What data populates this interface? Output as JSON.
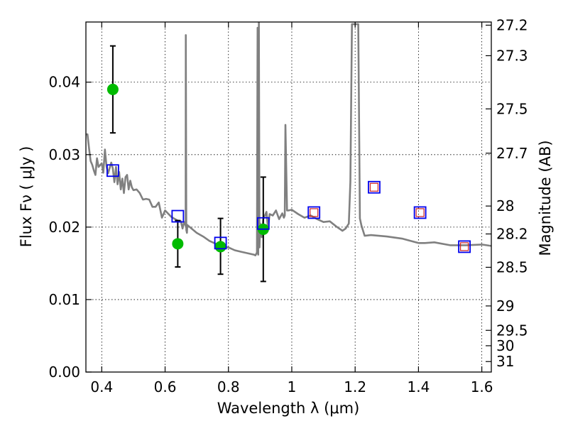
{
  "chart_data": {
    "type": "scatter",
    "xlabel": "Wavelength  λ (μm)",
    "ylabel": "Flux  Fν  ( μJy )",
    "y2label": "Magnitude (AB)",
    "xlim": [
      0.35,
      1.63
    ],
    "ylim": [
      0.0,
      0.0483
    ],
    "xticks": [
      0.4,
      0.6,
      0.8,
      1.0,
      1.2,
      1.4,
      1.6
    ],
    "xtick_labels": [
      "0.4",
      "0.6",
      "0.8",
      "1",
      "1.2",
      "1.4",
      "1.6"
    ],
    "yticks": [
      0.0,
      0.01,
      0.02,
      0.03,
      0.04
    ],
    "ytick_labels": [
      "0.00",
      "0.01",
      "0.02",
      "0.03",
      "0.04"
    ],
    "mag_ticks": [
      27.2,
      27.3,
      27.5,
      27.7,
      28.0,
      28.2,
      28.5,
      29.0,
      29.5,
      30.0,
      31.0
    ],
    "mag_tick_labels": [
      "27.2",
      "27.3",
      "27.5",
      "27.7",
      "28",
      "28.2",
      "28.5",
      "29",
      "29.5",
      "30",
      "31"
    ],
    "grid": true,
    "colors": {
      "model": "#808080",
      "observed": "#00bb00",
      "synthetic": "#0000ee",
      "inner_marker": "#cc2222",
      "errorbar": "#000000"
    },
    "model_sed": {
      "x": [
        0.35,
        0.355,
        0.36,
        0.365,
        0.37,
        0.375,
        0.38,
        0.385,
        0.39,
        0.4,
        0.405,
        0.41,
        0.415,
        0.42,
        0.43,
        0.435,
        0.44,
        0.445,
        0.45,
        0.455,
        0.46,
        0.465,
        0.47,
        0.475,
        0.48,
        0.485,
        0.49,
        0.495,
        0.5,
        0.51,
        0.52,
        0.53,
        0.54,
        0.55,
        0.56,
        0.57,
        0.58,
        0.59,
        0.6,
        0.62,
        0.64,
        0.65,
        0.655,
        0.66,
        0.665,
        0.6655,
        0.667,
        0.669,
        0.67,
        0.675,
        0.7,
        0.72,
        0.74,
        0.76,
        0.78,
        0.8,
        0.82,
        0.84,
        0.86,
        0.88,
        0.885,
        0.89,
        0.892,
        0.894,
        0.896,
        0.898,
        0.9,
        0.905,
        0.91,
        0.92,
        0.925,
        0.93,
        0.94,
        0.95,
        0.96,
        0.97,
        0.975,
        0.978,
        0.98,
        0.985,
        0.99,
        1.0,
        1.02,
        1.04,
        1.06,
        1.08,
        1.1,
        1.12,
        1.14,
        1.16,
        1.17,
        1.18,
        1.185,
        1.19,
        1.2,
        1.21,
        1.215,
        1.22,
        1.23,
        1.25,
        1.3,
        1.35,
        1.4,
        1.42,
        1.45,
        1.5,
        1.55,
        1.6,
        1.63
      ],
      "y": [
        0.0328,
        0.0328,
        0.0308,
        0.0291,
        0.0286,
        0.0278,
        0.0272,
        0.0295,
        0.0283,
        0.0288,
        0.0275,
        0.0307,
        0.0284,
        0.0274,
        0.0289,
        0.0281,
        0.0262,
        0.0283,
        0.0259,
        0.0276,
        0.0252,
        0.0267,
        0.0247,
        0.0269,
        0.0272,
        0.0252,
        0.0264,
        0.0255,
        0.0251,
        0.0252,
        0.0247,
        0.0238,
        0.0239,
        0.0238,
        0.0228,
        0.0228,
        0.0234,
        0.0213,
        0.0223,
        0.0214,
        0.0209,
        0.0208,
        0.0198,
        0.0207,
        0.0202,
        0.0465,
        0.0196,
        0.0192,
        0.0203,
        0.0201,
        0.0192,
        0.0187,
        0.0181,
        0.0177,
        0.0173,
        0.0172,
        0.0168,
        0.0166,
        0.0164,
        0.0162,
        0.0161,
        0.0165,
        0.0475,
        0.0162,
        0.0487,
        0.0172,
        0.0205,
        0.0186,
        0.0211,
        0.0221,
        0.0197,
        0.0218,
        0.0216,
        0.0223,
        0.0211,
        0.0219,
        0.0213,
        0.0216,
        0.0341,
        0.0223,
        0.0223,
        0.0224,
        0.0218,
        0.0213,
        0.0216,
        0.0211,
        0.0207,
        0.0208,
        0.0201,
        0.0195,
        0.0198,
        0.0205,
        0.0263,
        0.048,
        0.048,
        0.048,
        0.0212,
        0.0202,
        0.0188,
        0.0189,
        0.0187,
        0.0184,
        0.0178,
        0.0178,
        0.0179,
        0.0175,
        0.0175,
        0.0176,
        0.0174
      ]
    },
    "observed": [
      {
        "x": 0.435,
        "y": 0.039,
        "yerr_low": 0.006,
        "yerr_high": 0.006
      },
      {
        "x": 0.64,
        "y": 0.0177,
        "yerr_low": 0.0032,
        "yerr_high": 0.0032
      },
      {
        "x": 0.775,
        "y": 0.0173,
        "yerr_low": 0.0038,
        "yerr_high": 0.0039
      },
      {
        "x": 0.91,
        "y": 0.0197,
        "yerr_low": 0.0072,
        "yerr_high": 0.0072
      }
    ],
    "synthetic": [
      {
        "x": 0.435,
        "y": 0.0278
      },
      {
        "x": 0.64,
        "y": 0.0215
      },
      {
        "x": 0.775,
        "y": 0.0178
      },
      {
        "x": 0.91,
        "y": 0.0205
      },
      {
        "x": 1.07,
        "y": 0.022,
        "inner": true
      },
      {
        "x": 1.26,
        "y": 0.0255,
        "inner": true
      },
      {
        "x": 1.405,
        "y": 0.022,
        "inner": true
      },
      {
        "x": 1.545,
        "y": 0.0173,
        "inner": true
      }
    ]
  }
}
